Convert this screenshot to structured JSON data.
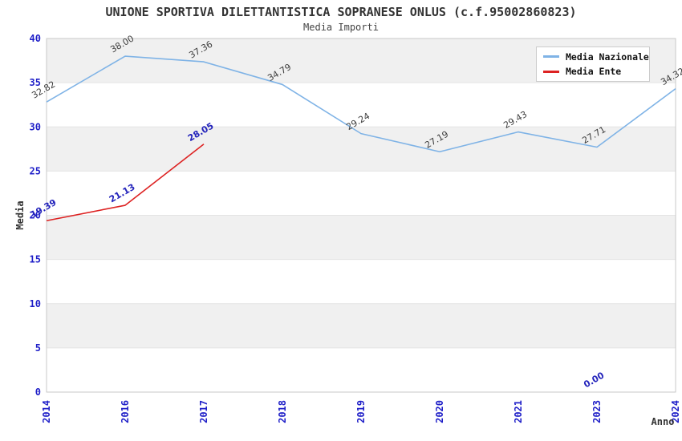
{
  "chart_data": {
    "type": "line",
    "title": "UNIONE SPORTIVA DILETTANTISTICA SOPRANESE ONLUS (c.f.95002860823)",
    "subtitle": "Media Importi",
    "xlabel": "Anno",
    "ylabel": "Media",
    "categories": [
      "2014",
      "2016",
      "2017",
      "2018",
      "2019",
      "2020",
      "2021",
      "2023",
      "2024"
    ],
    "ylim": [
      0,
      40
    ],
    "yticks": [
      0,
      5,
      10,
      15,
      20,
      25,
      30,
      35,
      40
    ],
    "grid": "horizontal-bands",
    "legend_position": "top-right",
    "series": [
      {
        "name": "Media Nazionale",
        "color": "#7fb3e6",
        "label_color": "#3d3d3d",
        "values": [
          32.82,
          38.0,
          37.36,
          34.79,
          29.24,
          27.19,
          29.43,
          27.71,
          34.32
        ]
      },
      {
        "name": "Media Ente",
        "color": "#dd2222",
        "label_color": "#2323bb",
        "values": [
          19.39,
          21.13,
          28.05,
          null,
          null,
          null,
          null,
          0.0,
          null
        ]
      }
    ],
    "colors": {
      "tick_label": "#1f1fc8",
      "band": "#f0f0f0",
      "grid": "#e4e4e4",
      "spine": "#c9c9c9",
      "title": "#333333"
    }
  }
}
